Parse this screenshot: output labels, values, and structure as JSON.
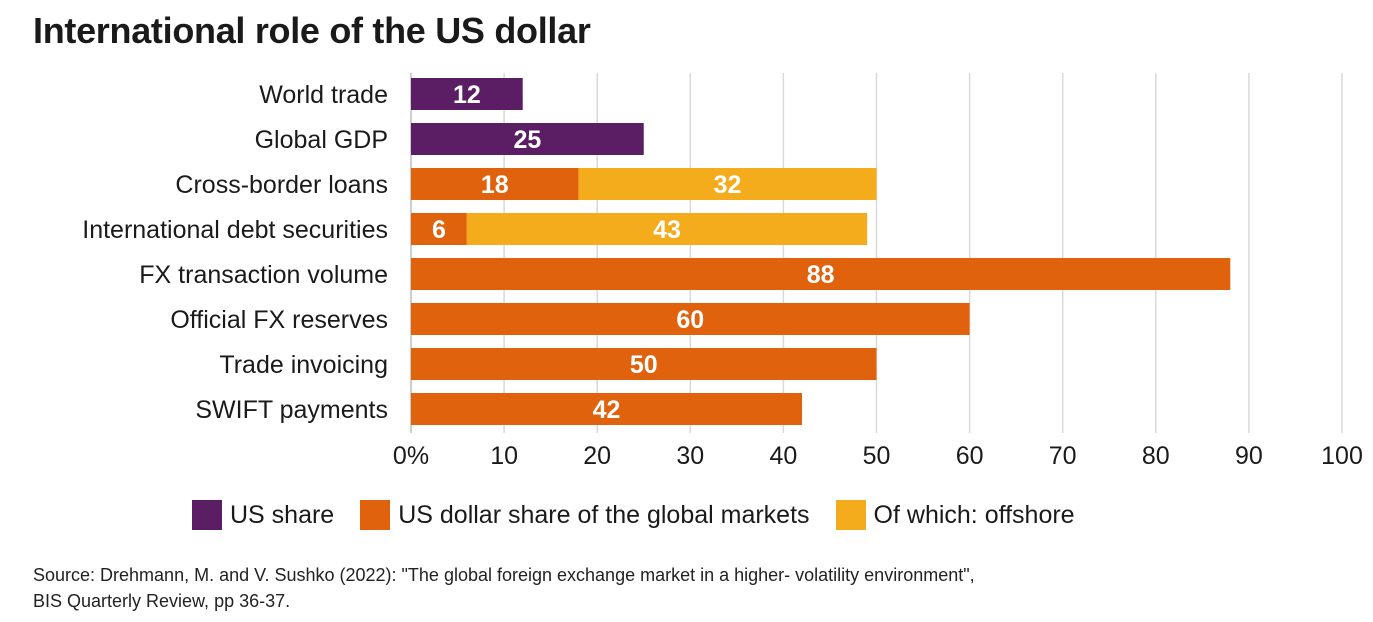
{
  "title": "International role of the US dollar",
  "colors": {
    "us_share": "#5b1e64",
    "usd_global": "#e0620d",
    "offshore": "#f5ac1c",
    "grid": "#d9d9d9"
  },
  "legend": [
    {
      "label": "US share",
      "color": "#5b1e64"
    },
    {
      "label": "US dollar share of the global markets",
      "color": "#e0620d"
    },
    {
      "label": "Of which: offshore",
      "color": "#f5ac1c"
    }
  ],
  "source_line1": "Source: Drehmann, M. and V. Sushko (2022): \"The global foreign exchange market in a higher- volatility environment\",",
  "source_line2": "BIS Quarterly Review, pp 36-37.",
  "chart_data": {
    "type": "bar",
    "orientation": "horizontal",
    "stacked": true,
    "title": "International role of the US dollar",
    "xlim": [
      0,
      100
    ],
    "xticks": [
      "0%",
      "10",
      "20",
      "30",
      "40",
      "50",
      "60",
      "70",
      "80",
      "90",
      "100"
    ],
    "grid": true,
    "legend_position": "bottom",
    "categories": [
      "World trade",
      "Global GDP",
      "Cross-border loans",
      "International debt securities",
      "FX transaction volume",
      "Official FX reserves",
      "Trade invoicing",
      "SWIFT payments"
    ],
    "series": [
      {
        "name": "US share",
        "color": "#5b1e64",
        "values": [
          12,
          25,
          null,
          null,
          null,
          null,
          null,
          null
        ]
      },
      {
        "name": "US dollar share of the global markets",
        "color": "#e0620d",
        "values": [
          null,
          null,
          18,
          6,
          88,
          60,
          50,
          42
        ]
      },
      {
        "name": "Of which: offshore",
        "color": "#f5ac1c",
        "values": [
          null,
          null,
          32,
          43,
          null,
          null,
          null,
          null
        ]
      }
    ]
  }
}
